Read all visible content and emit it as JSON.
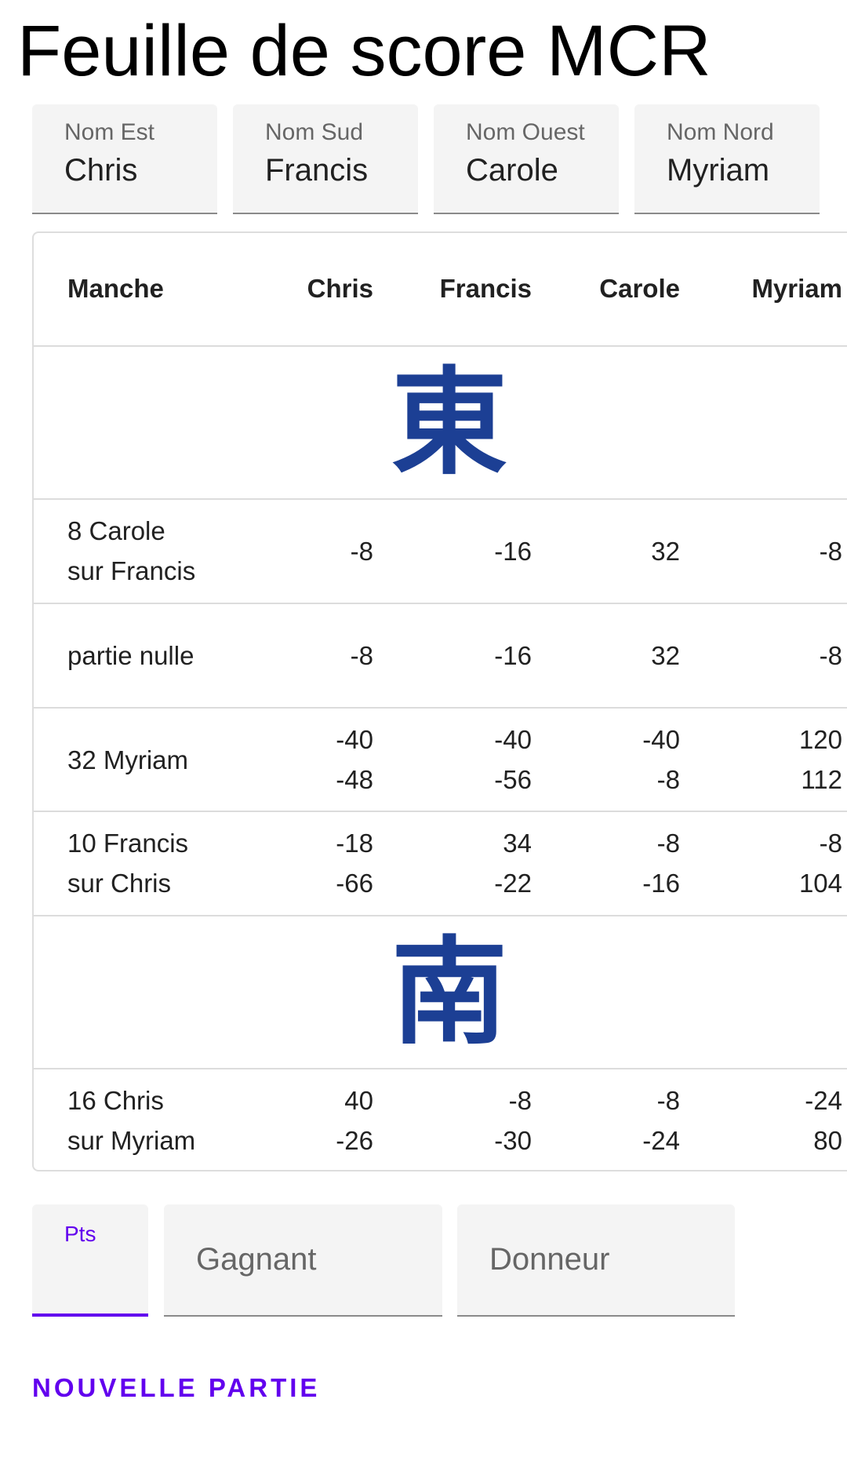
{
  "title": "Feuille de score MCR",
  "names": [
    {
      "label": "Nom Est",
      "value": "Chris"
    },
    {
      "label": "Nom Sud",
      "value": "Francis"
    },
    {
      "label": "Nom Ouest",
      "value": "Carole"
    },
    {
      "label": "Nom Nord",
      "value": "Myriam"
    }
  ],
  "table": {
    "headers": [
      "Manche",
      "Chris",
      "Francis",
      "Carole",
      "Myriam"
    ],
    "wind_east": "東",
    "wind_south": "南",
    "rounds": [
      {
        "manche": [
          "8 Carole",
          "sur Francis"
        ],
        "scores": [
          [
            "-8"
          ],
          [
            "-16"
          ],
          [
            "32"
          ],
          [
            "-8"
          ]
        ]
      },
      {
        "manche": [
          "partie nulle"
        ],
        "scores": [
          [
            "-8"
          ],
          [
            "-16"
          ],
          [
            "32"
          ],
          [
            "-8"
          ]
        ]
      },
      {
        "manche": [
          "32 Myriam"
        ],
        "scores": [
          [
            "-40",
            "-48"
          ],
          [
            "-40",
            "-56"
          ],
          [
            "-40",
            "-8"
          ],
          [
            "120",
            "112"
          ]
        ]
      },
      {
        "manche": [
          "10 Francis",
          "sur Chris"
        ],
        "scores": [
          [
            "-18",
            "-66"
          ],
          [
            "34",
            "-22"
          ],
          [
            "-8",
            "-16"
          ],
          [
            "-8",
            "104"
          ]
        ]
      },
      {
        "manche": [
          "16 Chris",
          "sur Myriam"
        ],
        "scores": [
          [
            "40",
            "-26"
          ],
          [
            "-8",
            "-30"
          ],
          [
            "-8",
            "-24"
          ],
          [
            "-24",
            "80"
          ]
        ]
      }
    ]
  },
  "entry": {
    "pts_label": "Pts",
    "gagnant_placeholder": "Gagnant",
    "donneur_placeholder": "Donneur"
  },
  "new_game_label": "NOUVELLE PARTIE",
  "colors": {
    "accent": "#6200ee",
    "wind_glyph": "#1c3f94"
  }
}
